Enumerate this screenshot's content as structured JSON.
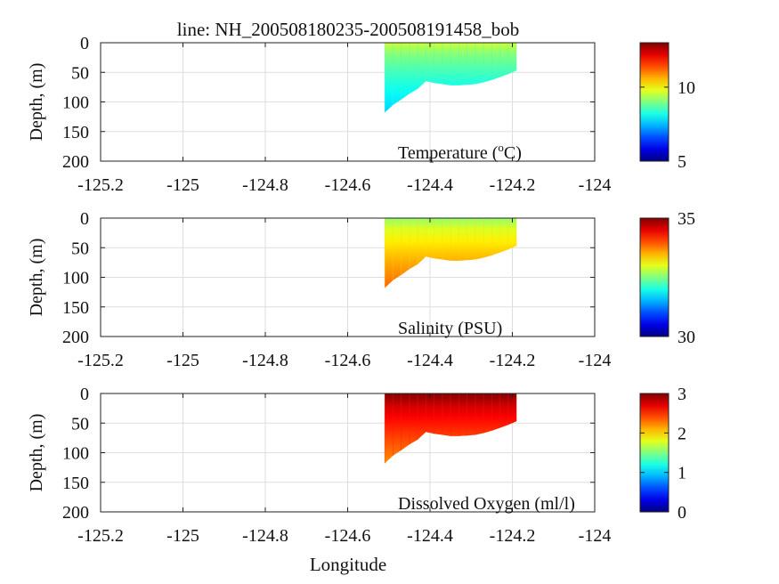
{
  "title": "line: NH_200508180235-200508191458_bob",
  "xlabel": "Longitude",
  "ylabel": "Depth, (m)",
  "colors": {
    "axis": "#222222",
    "grid": "#dedede"
  },
  "chart_data": [
    {
      "type": "heatmap",
      "variable": "temperature",
      "annotation_prefix": "Temperature (",
      "annotation_sup": "o",
      "annotation_suffix": "C)",
      "x_ticks": [
        "-125.2",
        "-125",
        "-124.8",
        "-124.6",
        "-124.4",
        "-124.2",
        "-124"
      ],
      "y_ticks": [
        "0",
        "50",
        "100",
        "150",
        "200"
      ],
      "xlim": [
        -125.2,
        -124
      ],
      "ylim": [
        0,
        200
      ],
      "y_reversed": true,
      "grid": true,
      "colorbar": {
        "colormap": "jet",
        "range": [
          5,
          13
        ],
        "ticks": [
          "5",
          "10"
        ],
        "tick_values": [
          5,
          10
        ]
      },
      "section": {
        "lon": [
          -124.51,
          -124.49,
          -124.47,
          -124.45,
          -124.43,
          -124.41,
          -124.39,
          -124.37,
          -124.35,
          -124.33,
          -124.31,
          -124.29,
          -124.27,
          -124.25,
          -124.23,
          -124.21,
          -124.19
        ],
        "bottom_depth": [
          118,
          105,
          96,
          86,
          78,
          65,
          68,
          70,
          72,
          72,
          71,
          70,
          67,
          63,
          58,
          53,
          47
        ],
        "surface_value": 9.6,
        "bottom_value": 7.6
      }
    },
    {
      "type": "heatmap",
      "variable": "salinity",
      "annotation_prefix": "Salinity (PSU)",
      "annotation_sup": "",
      "annotation_suffix": "",
      "x_ticks": [
        "-125.2",
        "-125",
        "-124.8",
        "-124.6",
        "-124.4",
        "-124.2",
        "-124"
      ],
      "y_ticks": [
        "0",
        "50",
        "100",
        "150",
        "200"
      ],
      "xlim": [
        -125.2,
        -124
      ],
      "ylim": [
        0,
        200
      ],
      "y_reversed": true,
      "grid": true,
      "colorbar": {
        "colormap": "jet",
        "range": [
          30,
          35
        ],
        "ticks": [
          "35",
          "30"
        ],
        "tick_values": [
          35,
          30
        ]
      },
      "section": {
        "lon": [
          -124.51,
          -124.49,
          -124.47,
          -124.45,
          -124.43,
          -124.41,
          -124.39,
          -124.37,
          -124.35,
          -124.33,
          -124.31,
          -124.29,
          -124.27,
          -124.25,
          -124.23,
          -124.21,
          -124.19
        ],
        "bottom_depth": [
          118,
          105,
          96,
          86,
          78,
          65,
          68,
          70,
          72,
          72,
          71,
          70,
          67,
          63,
          58,
          53,
          47
        ],
        "surface_value": 32.6,
        "bottom_value": 33.9
      }
    },
    {
      "type": "heatmap",
      "variable": "dissolved_oxygen",
      "annotation_prefix": "Dissolved Oxygen (ml/l)",
      "annotation_sup": "",
      "annotation_suffix": "",
      "x_ticks": [
        "-125.2",
        "-125",
        "-124.8",
        "-124.6",
        "-124.4",
        "-124.2",
        "-124"
      ],
      "y_ticks": [
        "0",
        "50",
        "100",
        "150",
        "200"
      ],
      "xlim": [
        -125.2,
        -124
      ],
      "ylim": [
        0,
        200
      ],
      "y_reversed": true,
      "grid": true,
      "colorbar": {
        "colormap": "jet",
        "range": [
          0,
          3
        ],
        "ticks": [
          "3",
          "2",
          "1",
          "0"
        ],
        "tick_values": [
          3,
          2,
          1,
          0
        ]
      },
      "section": {
        "lon": [
          -124.51,
          -124.49,
          -124.47,
          -124.45,
          -124.43,
          -124.41,
          -124.39,
          -124.37,
          -124.35,
          -124.33,
          -124.31,
          -124.29,
          -124.27,
          -124.25,
          -124.23,
          -124.21,
          -124.19
        ],
        "bottom_depth": [
          118,
          105,
          96,
          86,
          78,
          65,
          68,
          70,
          72,
          72,
          71,
          70,
          67,
          63,
          58,
          53,
          47
        ],
        "surface_value": 3.0,
        "bottom_value": 2.2
      }
    }
  ]
}
